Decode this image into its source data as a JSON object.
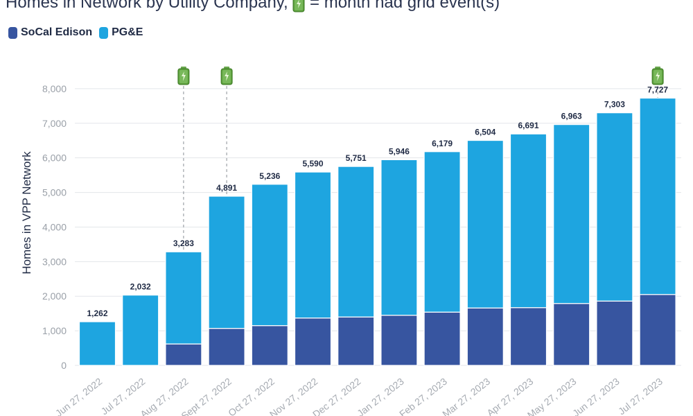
{
  "header": {
    "title_prefix": "Homes in Network by Utility Company,",
    "title_suffix": "= month had grid event(s)",
    "title_icon": "battery-icon"
  },
  "legend": {
    "items": [
      {
        "label": "SoCal Edison",
        "color": "#3755a0"
      },
      {
        "label": "PG&E",
        "color": "#1ea5e0"
      }
    ]
  },
  "chart_data": {
    "type": "bar",
    "stacked": true,
    "title": "Homes in Network by Utility Company, = month had grid event(s)",
    "ylabel": "Homes in VPP Network",
    "xlabel": "",
    "ylim": [
      0,
      8800
    ],
    "yticks": [
      0,
      1000,
      2000,
      3000,
      4000,
      5000,
      6000,
      7000,
      8000
    ],
    "ytick_labels": [
      "0",
      "1,000",
      "2,000",
      "3,000",
      "4,000",
      "5,000",
      "6,000",
      "7,000",
      "8,000"
    ],
    "grid": true,
    "legend_position": "top-left",
    "categories": [
      "Jun 27, 2022",
      "Jul 27, 2022",
      "Aug 27, 2022",
      "Sept 27, 2022",
      "Oct 27, 2022",
      "Nov 27, 2022",
      "Dec 27, 2022",
      "Jan 27, 2023",
      "Feb 27, 2023",
      "Mar 27, 2023",
      "Apr 27, 2023",
      "May 27, 2023",
      "Jun 27, 2023",
      "Jul 27, 2023"
    ],
    "series": [
      {
        "name": "SoCal Edison",
        "color": "#3755a0",
        "values": [
          0,
          0,
          620,
          1070,
          1150,
          1370,
          1400,
          1450,
          1540,
          1660,
          1670,
          1790,
          1860,
          2050
        ]
      },
      {
        "name": "PG&E",
        "color": "#1ea5e0",
        "values": [
          1262,
          2032,
          2663,
          3821,
          4086,
          4220,
          4351,
          4496,
          4639,
          4844,
          5021,
          5173,
          5443,
          5677
        ]
      }
    ],
    "totals": [
      1262,
      2032,
      3283,
      4891,
      5236,
      5590,
      5751,
      5946,
      6179,
      6504,
      6691,
      6963,
      7303,
      7727
    ],
    "total_labels": [
      "1,262",
      "2,032",
      "3,283",
      "4,891",
      "5,236",
      "5,590",
      "5,751",
      "5,946",
      "6,179",
      "6,504",
      "6,691",
      "6,963",
      "7,303",
      "7,727"
    ],
    "grid_event_months": [
      "Aug 27, 2022",
      "Sept 27, 2022",
      "Jul 27, 2023"
    ]
  }
}
